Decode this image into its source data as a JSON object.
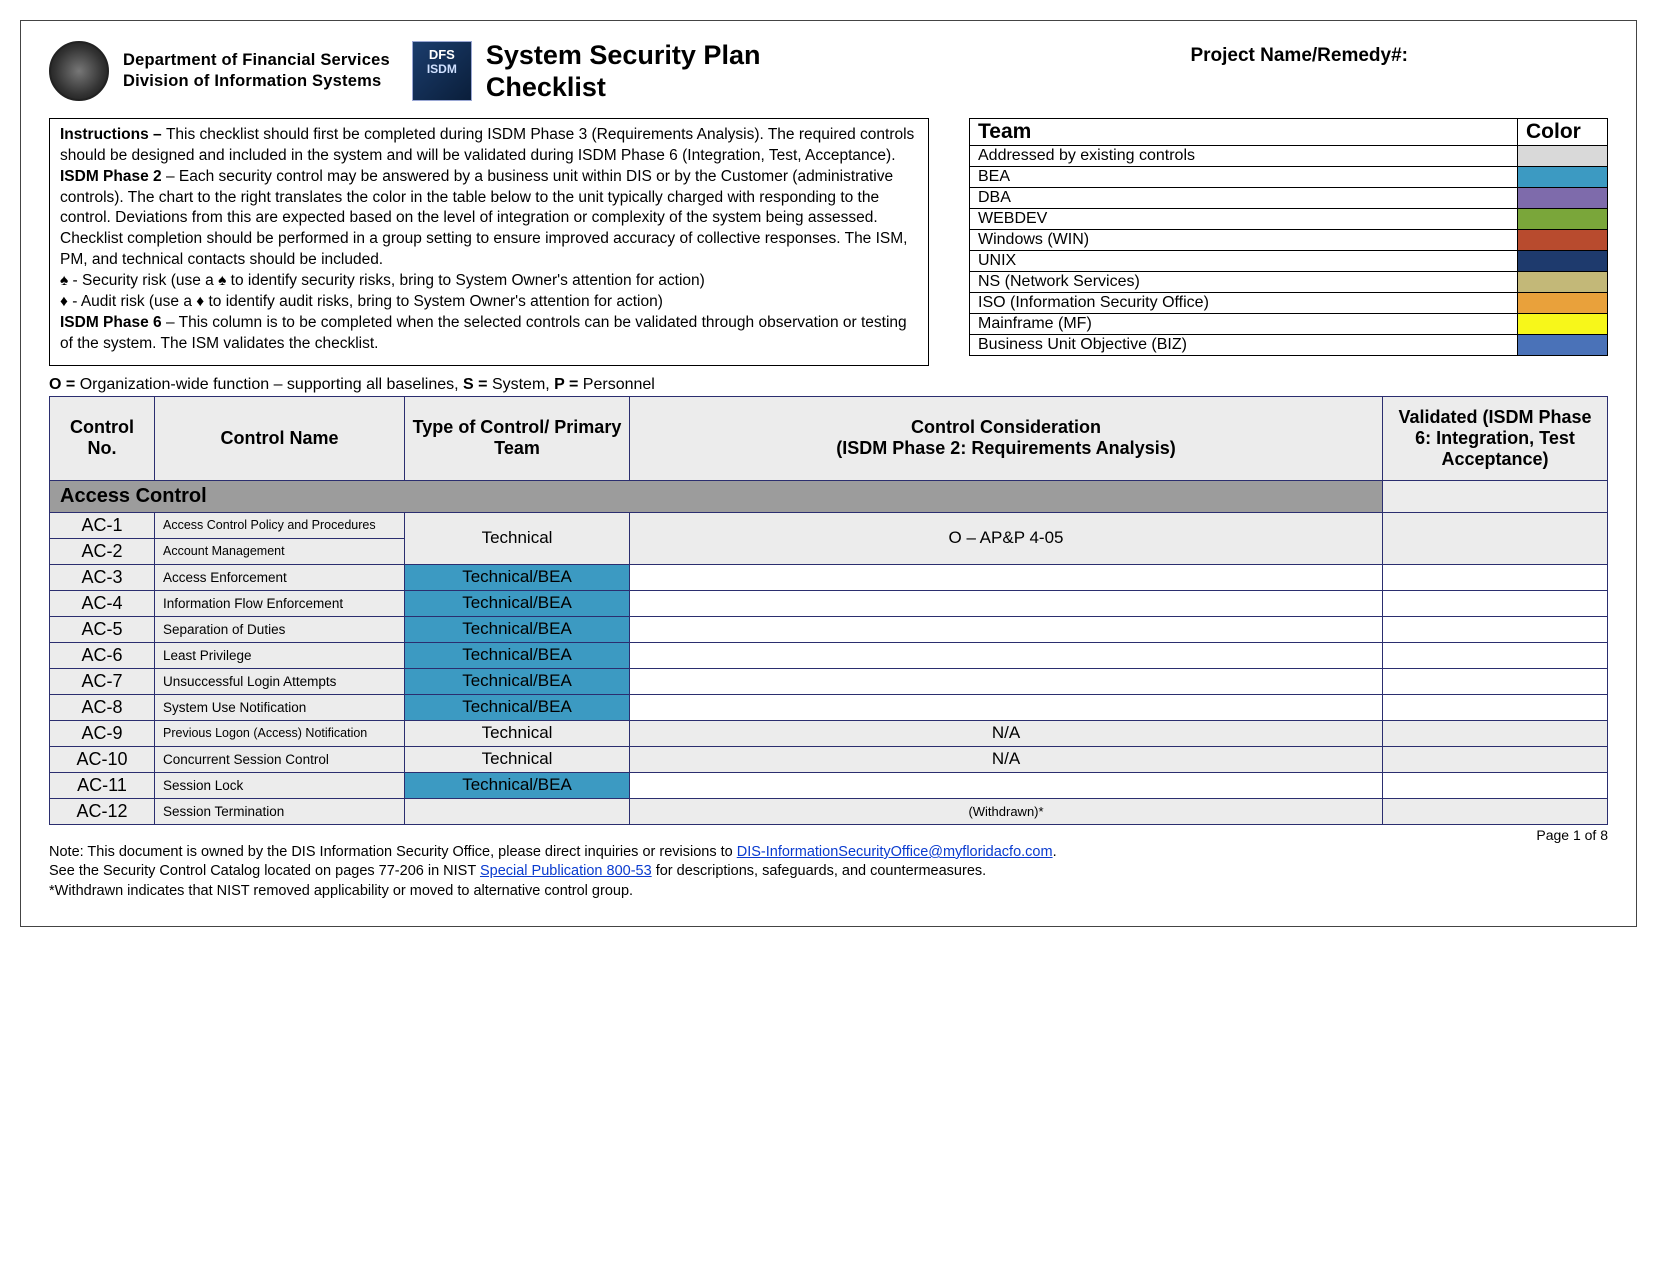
{
  "header": {
    "dept_line1": "Department of Financial Services",
    "dept_line2": "Division of Information Systems",
    "dfs_logo_t1": "DFS",
    "dfs_logo_t2": "ISDM",
    "title_line1": "System Security Plan",
    "title_line2": "Checklist",
    "project_label": "Project Name/Remedy#:"
  },
  "instructions": {
    "label": "Instructions – ",
    "p1": "This checklist should first be completed during ISDM Phase 3 (Requirements Analysis). The required controls should be designed and included in the system and will be validated during ISDM Phase 6 (Integration, Test, Acceptance).",
    "phase2_label": "ISDM Phase 2",
    "phase2_text": " – Each security control may be answered by a business unit within DIS or by the Customer (administrative controls).  The chart to the right translates the color in the table below to the unit typically charged with responding to the control. Deviations from this are expected based on the level of integration or complexity of the system being assessed. Checklist completion should be performed in a group setting to ensure improved accuracy of collective responses. The ISM, PM, and technical contacts should be included.",
    "spade": "♠ - Security risk (use a ♠ to identify security risks, bring to System Owner's attention for action)",
    "diamond": "♦ - Audit risk (use a ♦ to identify audit risks, bring to System Owner's attention for action)",
    "phase6_label": "ISDM Phase 6",
    "phase6_text": " – This column is to be completed when the selected controls can be validated through observation or testing of the system.  The ISM validates the checklist."
  },
  "team_table": {
    "col_team": "Team",
    "col_color": "Color",
    "rows": [
      {
        "name": "Addressed by existing controls",
        "color": "#d9d9d9"
      },
      {
        "name": "BEA",
        "color": "#3c9ac2"
      },
      {
        "name": "DBA",
        "color": "#7e6bab"
      },
      {
        "name": "WEBDEV",
        "color": "#7aa63a"
      },
      {
        "name": "Windows (WIN)",
        "color": "#b84b2e"
      },
      {
        "name": "UNIX",
        "color": "#1e3a6d"
      },
      {
        "name": "NS (Network Services)",
        "color": "#c3b878"
      },
      {
        "name": "ISO (Information Security Office)",
        "color": "#e9a13b"
      },
      {
        "name": "Mainframe (MF)",
        "color": "#f7f71a"
      },
      {
        "name": "Business Unit Objective (BIZ)",
        "color": "#4a72b8"
      }
    ]
  },
  "osp_line": {
    "o_def": "Organization-wide function – supporting all baselines, ",
    "s_def": "System, ",
    "p_def": "Personnel"
  },
  "columns": {
    "no": "Control No.",
    "name": "Control Name",
    "type": "Type of Control/ Primary Team",
    "consideration": "Control Consideration\n(ISDM Phase 2: Requirements Analysis)",
    "validated": "Validated (ISDM Phase 6: Integration, Test Acceptance)"
  },
  "section_title": "Access Control",
  "rows": [
    {
      "no": "AC-1",
      "name": "Access Control Policy and Procedures",
      "type": "Technical",
      "type_bg": "#ececec",
      "cons": "O – AP&P 4-05",
      "cons_bg": "#ececec",
      "merged_group": 1,
      "name_small": true
    },
    {
      "no": "AC-2",
      "name": "Account Management",
      "type": "Technical",
      "type_bg": "#ececec",
      "cons": "O – AP&P 4-05",
      "cons_bg": "#ececec",
      "merged_group": 1,
      "name_small": true
    },
    {
      "no": "AC-3",
      "name": "Access Enforcement",
      "type": "Technical/BEA",
      "type_bg": "#3c9ac2",
      "cons": "",
      "cons_bg": "#ffffff"
    },
    {
      "no": "AC-4",
      "name": "Information Flow Enforcement",
      "type": "Technical/BEA",
      "type_bg": "#3c9ac2",
      "cons": "",
      "cons_bg": "#ffffff"
    },
    {
      "no": "AC-5",
      "name": "Separation of Duties",
      "type": "Technical/BEA",
      "type_bg": "#3c9ac2",
      "cons": "",
      "cons_bg": "#ffffff"
    },
    {
      "no": "AC-6",
      "name": "Least Privilege",
      "type": "Technical/BEA",
      "type_bg": "#3c9ac2",
      "cons": "",
      "cons_bg": "#ffffff"
    },
    {
      "no": "AC-7",
      "name": "Unsuccessful Login Attempts",
      "type": "Technical/BEA",
      "type_bg": "#3c9ac2",
      "cons": "",
      "cons_bg": "#ffffff"
    },
    {
      "no": "AC-8",
      "name": "System Use Notification",
      "type": "Technical/BEA",
      "type_bg": "#3c9ac2",
      "cons": "",
      "cons_bg": "#ffffff"
    },
    {
      "no": "AC-9",
      "name": "Previous Logon (Access) Notification",
      "type": "Technical",
      "type_bg": "#ececec",
      "cons": "N/A",
      "cons_bg": "#ececec",
      "name_small": true
    },
    {
      "no": "AC-10",
      "name": "Concurrent Session Control",
      "type": "Technical",
      "type_bg": "#ececec",
      "cons": "N/A",
      "cons_bg": "#ececec"
    },
    {
      "no": "AC-11",
      "name": "Session Lock",
      "type": "Technical/BEA",
      "type_bg": "#3c9ac2",
      "cons": "",
      "cons_bg": "#ffffff"
    },
    {
      "no": "AC-12",
      "name": "Session Termination",
      "type": "",
      "type_bg": "#ececec",
      "cons": "(Withdrawn)*",
      "cons_bg": "#ececec",
      "cons_small": true
    }
  ],
  "page_no": "Page 1 of 8",
  "footnote": {
    "l1a": "Note: This document is owned by the DIS Information Security Office, please direct inquiries or revisions to ",
    "l1_link": "DIS-InformationSecurityOffice@myfloridacfo.com",
    "l1b": ".",
    "l2a": "See the Security Control Catalog located on pages 77-206 in NIST ",
    "l2_link": "Special Publication 800-53",
    "l2b": " for descriptions, safeguards, and countermeasures.",
    "l3": "*Withdrawn indicates that NIST removed applicability or moved to alternative control group."
  }
}
